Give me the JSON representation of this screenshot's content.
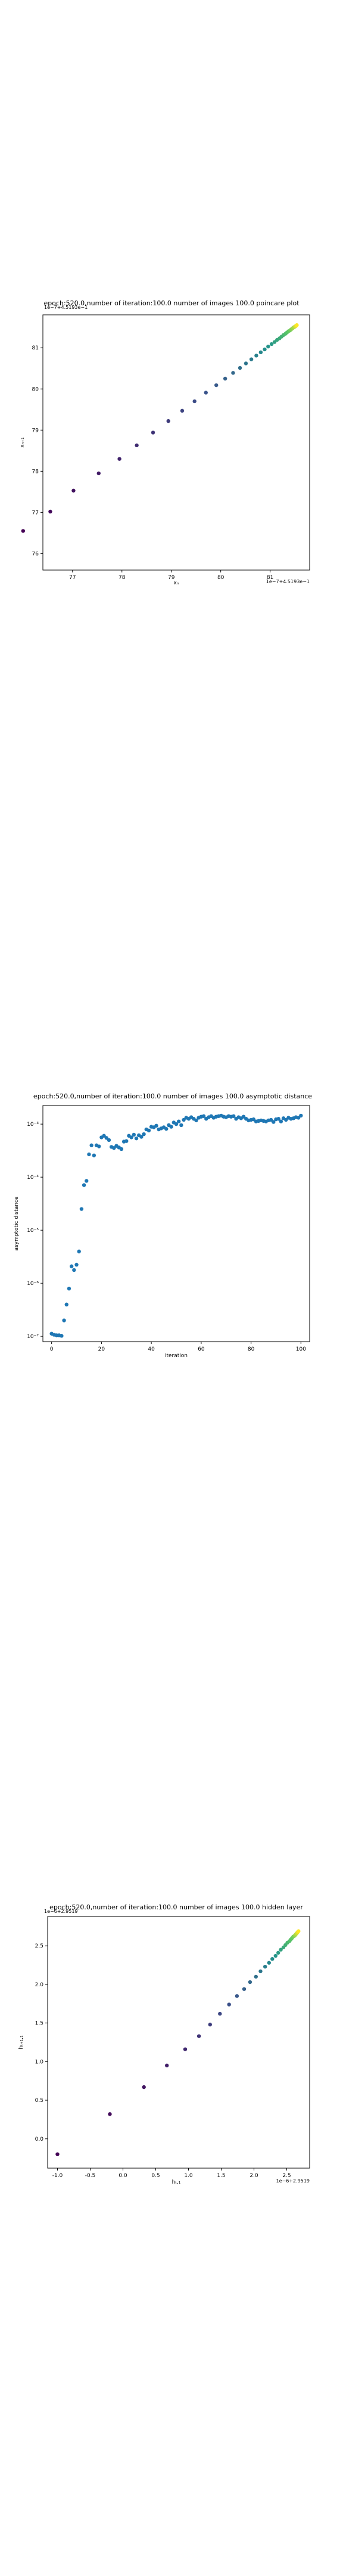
{
  "chart_data": [
    {
      "type": "scatter",
      "title": "epoch:520.0,number of iteration:100.0 number of images 100.0 poincare plot",
      "offset_text": "1e−7+4.5193e−1",
      "offset_text_y": "1e−7+4.5193e−1",
      "xlabel": "xₙ",
      "ylabel": "xₙ₊₁",
      "xlim": [
        76.4,
        81.8
      ],
      "ylim": [
        75.6,
        81.8
      ],
      "xticks": [
        77,
        78,
        79,
        80,
        81
      ],
      "yticks": [
        76,
        77,
        78,
        79,
        80,
        81
      ],
      "colormap": "viridis",
      "points_x": [
        76.0,
        76.55,
        77.02,
        77.53,
        77.95,
        78.3,
        78.63,
        78.94,
        79.22,
        79.47,
        79.7,
        79.91,
        80.09,
        80.25,
        80.39,
        80.51,
        80.62,
        80.72,
        80.81,
        80.89,
        80.96,
        81.03,
        81.09,
        81.14,
        81.19,
        81.23,
        81.27,
        81.31,
        81.34,
        81.37,
        81.4,
        81.42,
        81.44,
        81.46,
        81.48,
        81.5,
        81.51,
        81.52,
        81.53,
        81.54
      ],
      "points_y": [
        76.55,
        77.02,
        77.53,
        77.95,
        78.3,
        78.63,
        78.94,
        79.22,
        79.47,
        79.7,
        79.91,
        80.09,
        80.25,
        80.39,
        80.51,
        80.62,
        80.72,
        80.81,
        80.89,
        80.96,
        81.03,
        81.09,
        81.14,
        81.19,
        81.23,
        81.27,
        81.31,
        81.34,
        81.37,
        81.4,
        81.42,
        81.44,
        81.46,
        81.48,
        81.5,
        81.51,
        81.52,
        81.53,
        81.54,
        81.55
      ]
    },
    {
      "type": "scatter",
      "title": "epoch:520.0,number of iteration:100.0  number of images 100.0 asymptotic distance",
      "xlabel": "iteration",
      "ylabel": "asymptotic distance",
      "yscale": "log",
      "xlim": [
        -3.5,
        103.5
      ],
      "ylim_log10": [
        -7.1,
        -2.65
      ],
      "xticks": [
        0,
        20,
        40,
        60,
        80,
        100
      ],
      "yticks_log10": [
        -7,
        -6,
        -5,
        -4,
        -3
      ],
      "ytick_labels": [
        "10⁻⁷",
        "10⁻⁶",
        "10⁻⁵",
        "10⁻⁴",
        "10⁻³"
      ],
      "marker_color": "#1f77b4",
      "x": [
        0,
        1,
        2,
        3,
        4,
        5,
        6,
        7,
        8,
        9,
        10,
        11,
        12,
        13,
        14,
        15,
        16,
        17,
        18,
        19,
        20,
        21,
        22,
        23,
        24,
        25,
        26,
        27,
        28,
        29,
        30,
        31,
        32,
        33,
        34,
        35,
        36,
        37,
        38,
        39,
        40,
        41,
        42,
        43,
        44,
        45,
        46,
        47,
        48,
        49,
        50,
        51,
        52,
        53,
        54,
        55,
        56,
        57,
        58,
        59,
        60,
        61,
        62,
        63,
        64,
        65,
        66,
        67,
        68,
        69,
        70,
        71,
        72,
        73,
        74,
        75,
        76,
        77,
        78,
        79,
        80,
        81,
        82,
        83,
        84,
        85,
        86,
        87,
        88,
        89,
        90,
        91,
        92,
        93,
        94,
        95,
        96,
        97,
        98,
        99,
        100
      ],
      "y_log10": [
        -6.95,
        -6.97,
        -6.98,
        -6.98,
        -6.99,
        -6.7,
        -6.4,
        -6.1,
        -5.68,
        -5.75,
        -5.65,
        -5.4,
        -4.6,
        -4.15,
        -4.07,
        -3.57,
        -3.4,
        -3.59,
        -3.4,
        -3.42,
        -3.25,
        -3.22,
        -3.26,
        -3.3,
        -3.43,
        -3.45,
        -3.41,
        -3.44,
        -3.47,
        -3.33,
        -3.32,
        -3.22,
        -3.25,
        -3.2,
        -3.27,
        -3.21,
        -3.24,
        -3.19,
        -3.1,
        -3.12,
        -3.05,
        -3.06,
        -3.03,
        -3.1,
        -3.08,
        -3.06,
        -3.09,
        -3.02,
        -3.05,
        -2.97,
        -3.0,
        -2.95,
        -3.02,
        -2.92,
        -2.88,
        -2.9,
        -2.87,
        -2.9,
        -2.93,
        -2.88,
        -2.86,
        -2.85,
        -2.9,
        -2.87,
        -2.85,
        -2.88,
        -2.86,
        -2.85,
        -2.84,
        -2.86,
        -2.87,
        -2.85,
        -2.86,
        -2.85,
        -2.9,
        -2.87,
        -2.89,
        -2.86,
        -2.9,
        -2.93,
        -2.92,
        -2.91,
        -2.95,
        -2.94,
        -2.93,
        -2.94,
        -2.95,
        -2.93,
        -2.92,
        -2.96,
        -2.91,
        -2.9,
        -2.95,
        -2.89,
        -2.92,
        -2.88,
        -2.9,
        -2.89,
        -2.87,
        -2.88,
        -2.84
      ]
    },
    {
      "type": "scatter",
      "title": "epoch:520.0,number of iteration:100.0  number of images 100.0 hidden layer",
      "offset_text": "1e−6+2.9519",
      "offset_text_y": "1e−6+2.9519",
      "xlabel": "hₜ,₁",
      "ylabel": "hₜ₊₁,₁",
      "xlim": [
        -1.15,
        2.85
      ],
      "ylim": [
        -0.38,
        2.88
      ],
      "xticks": [
        -1.0,
        -0.5,
        0.0,
        0.5,
        1.0,
        1.5,
        2.0,
        2.5
      ],
      "yticks": [
        0.0,
        0.5,
        1.0,
        1.5,
        2.0,
        2.5
      ],
      "colormap": "viridis",
      "points_x": [
        -1.0,
        -0.2,
        0.32,
        0.67,
        0.95,
        1.16,
        1.33,
        1.48,
        1.62,
        1.74,
        1.85,
        1.94,
        2.03,
        2.1,
        2.17,
        2.23,
        2.28,
        2.33,
        2.37,
        2.41,
        2.45,
        2.48,
        2.51,
        2.54,
        2.56,
        2.58,
        2.6,
        2.62,
        2.63,
        2.64,
        2.65,
        2.66,
        2.67,
        2.68
      ],
      "points_y": [
        -0.2,
        0.32,
        0.67,
        0.95,
        1.16,
        1.33,
        1.48,
        1.62,
        1.74,
        1.85,
        1.94,
        2.03,
        2.1,
        2.17,
        2.23,
        2.28,
        2.33,
        2.37,
        2.41,
        2.45,
        2.48,
        2.51,
        2.54,
        2.56,
        2.58,
        2.6,
        2.62,
        2.63,
        2.64,
        2.65,
        2.66,
        2.67,
        2.68,
        2.69
      ]
    }
  ]
}
